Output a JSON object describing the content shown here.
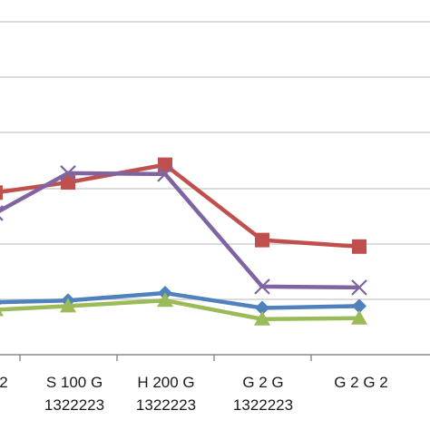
{
  "chart_data": {
    "type": "line",
    "categories": [
      [
        "2",
        ""
      ],
      [
        "S 100 G",
        "1322223"
      ],
      [
        "H 200 G",
        "1322223"
      ],
      [
        "G 2 G",
        "1322223"
      ],
      [
        "G 2 G 2",
        ""
      ]
    ],
    "title": "",
    "xlabel": "",
    "ylabel": "",
    "grid": true,
    "legend": "none",
    "series": [
      {
        "color": "#c0504d",
        "marker": "square",
        "values": [
          63,
          68.5,
          78,
          37.5,
          34
        ]
      },
      {
        "color": "#8064a2",
        "marker": "x",
        "values": [
          52,
          73.5,
          73,
          12.5,
          12
        ]
      },
      {
        "color": "#4f81bd",
        "marker": "diamond",
        "values": [
          4,
          5,
          9,
          1,
          2
        ]
      },
      {
        "color": "#9bbb59",
        "marker": "triangle",
        "values": [
          0,
          2,
          5,
          -5,
          -4.5
        ]
      }
    ]
  }
}
